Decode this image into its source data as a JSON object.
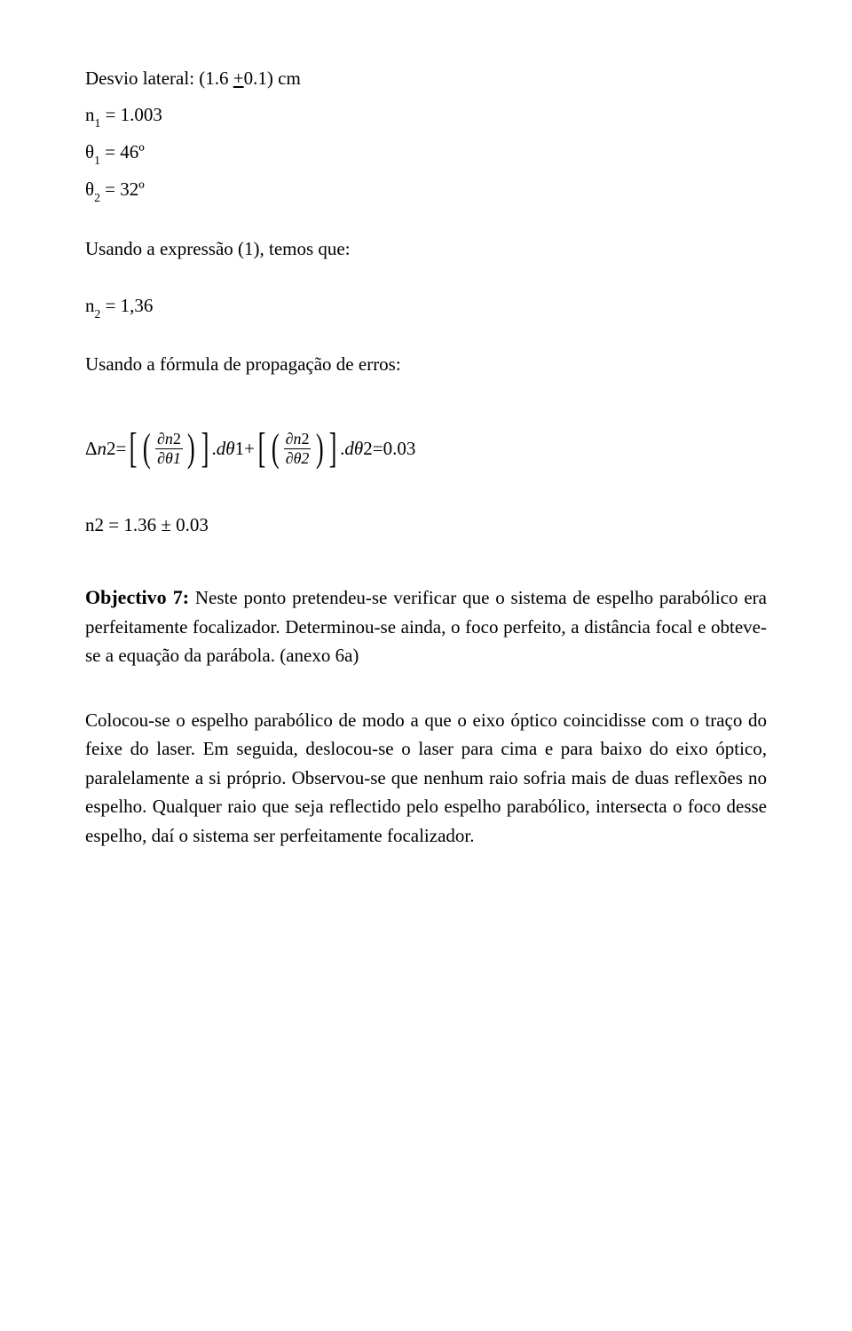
{
  "given": {
    "lateral_dev": "Desvio lateral: (1.6 ",
    "lateral_dev_pm": "+",
    "lateral_dev_rest": "0.1) cm",
    "n1_label": "n",
    "n1_sub": "1",
    "n1_eq": " = 1.003",
    "theta1_label": "θ",
    "theta1_sub": "1",
    "theta1_eq": " = 46º",
    "theta2_label": "θ",
    "theta2_sub": "2",
    "theta2_eq": " = 32º"
  },
  "expr_intro": "Usando a expressão (1), temos que:",
  "n2_line": {
    "label": "n",
    "sub": "2",
    "eq": " = 1,36"
  },
  "prop_intro": "Usando a fórmula de propagação de erros:",
  "formula": {
    "lhs_delta": "Δ",
    "lhs_var": "n",
    "lhs_num": "2",
    "eq": " = ",
    "d_theta1": "dθ",
    "one": "1",
    "plus": " + ",
    "d_theta2": "dθ",
    "two": "2",
    "rhs": " =0.03",
    "partial": "∂",
    "n2_top": "n2",
    "theta1_bot": "θ1",
    "theta2_bot": "θ2",
    "dot": "."
  },
  "result": "n2 = 1.36  ±  0.03",
  "objective": {
    "title": "Objectivo 7:",
    "text1": " Neste ponto pretendeu-se verificar que o sistema de espelho parabólico era perfeitamente focalizador. Determinou-se ainda, o foco perfeito, a distância focal e obteve-se a equação da parábola. (anexo 6a)"
  },
  "body2": "Colocou-se o espelho parabólico de modo a que o eixo óptico coincidisse com o traço do feixe do laser. Em seguida, deslocou-se o laser para cima e para baixo do eixo óptico, paralelamente a si próprio. Observou-se que nenhum raio sofria mais de duas reflexões no espelho. Qualquer raio que seja reflectido pelo espelho parabólico, intersecta  o foco desse espelho, daí o sistema ser perfeitamente focalizador."
}
